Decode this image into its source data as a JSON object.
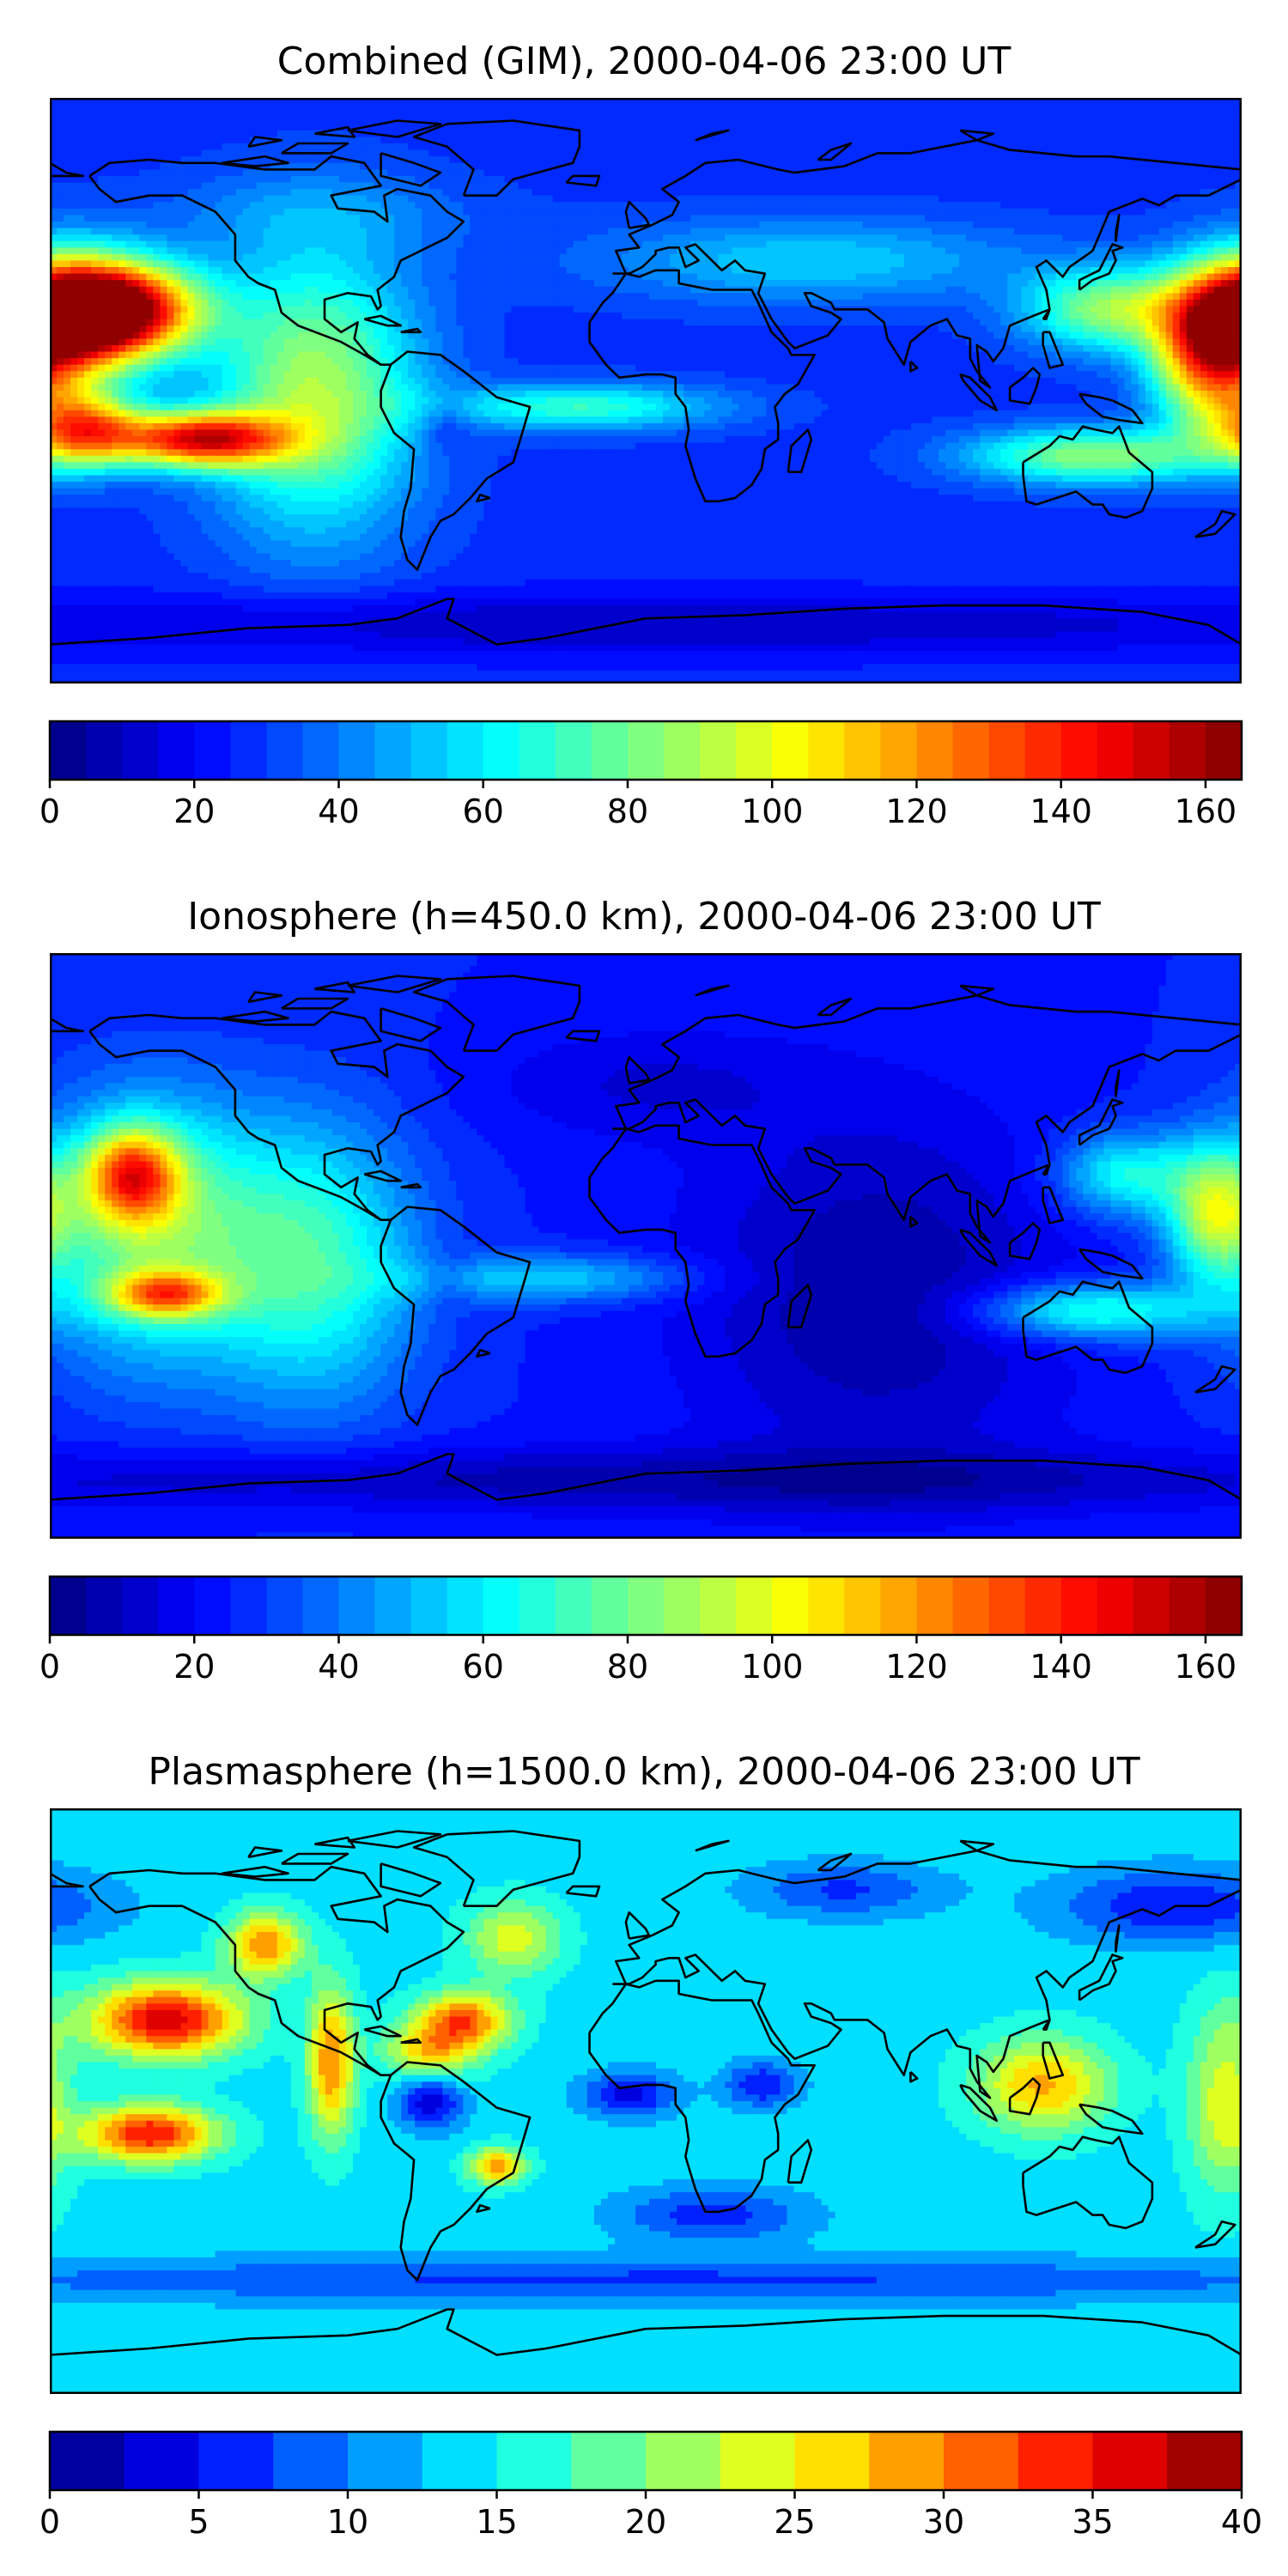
{
  "chart_data": [
    {
      "type": "heatmap",
      "title": "Combined (GIM), 2000-04-06 23:00 UT",
      "projection": "equirectangular world map with coastlines",
      "colormap": "jet",
      "colorbar": {
        "orientation": "horizontal",
        "placement": "below",
        "range": [
          0,
          165
        ],
        "levels": 33,
        "ticks": [
          0,
          20,
          40,
          60,
          80,
          100,
          120,
          140,
          160
        ]
      },
      "features": [
        {
          "lon": -160,
          "lat": 25,
          "sx": 18,
          "sy": 10,
          "value": 155
        },
        {
          "lon": -175,
          "lat": 22,
          "sx": 16,
          "sy": 14,
          "value": 120
        },
        {
          "lon": -135,
          "lat": -15,
          "sx": 18,
          "sy": 6,
          "value": 140
        },
        {
          "lon": -170,
          "lat": -12,
          "sx": 12,
          "sy": 8,
          "value": 115
        },
        {
          "lon": -100,
          "lat": 0,
          "sx": 22,
          "sy": 30,
          "value": 90
        },
        {
          "lon": -60,
          "lat": -10,
          "sx": 6,
          "sy": 6,
          "value": 15
        },
        {
          "lon": -20,
          "lat": -5,
          "sx": 30,
          "sy": 5,
          "value": 70
        },
        {
          "lon": 140,
          "lat": 25,
          "sx": 18,
          "sy": 9,
          "value": 85
        },
        {
          "lon": 170,
          "lat": 10,
          "sx": 12,
          "sy": 16,
          "value": 110
        },
        {
          "lon": 135,
          "lat": -20,
          "sx": 26,
          "sy": 6,
          "value": 85
        },
        {
          "lon": 50,
          "lat": 40,
          "sx": 45,
          "sy": 9,
          "value": 55
        },
        {
          "lon": -100,
          "lat": 55,
          "sx": 35,
          "sy": 9,
          "value": 40
        },
        {
          "lon": 0,
          "lat": -72,
          "sx": 180,
          "sy": 7,
          "value": 10
        }
      ],
      "base_value": 28
    },
    {
      "type": "heatmap",
      "title": "Ionosphere  (h=450.0 km), 2000-04-06 23:00 UT",
      "projection": "equirectangular world map with coastlines",
      "colormap": "jet",
      "colorbar": {
        "orientation": "horizontal",
        "placement": "below",
        "range": [
          0,
          165
        ],
        "levels": 33,
        "ticks": [
          0,
          20,
          40,
          60,
          80,
          100,
          120,
          140,
          160
        ]
      },
      "features": [
        {
          "lon": -155,
          "lat": 22,
          "sx": 10,
          "sy": 10,
          "value": 105
        },
        {
          "lon": -150,
          "lat": 5,
          "sx": 24,
          "sy": 28,
          "value": 80
        },
        {
          "lon": -145,
          "lat": -15,
          "sx": 12,
          "sy": 5,
          "value": 95
        },
        {
          "lon": -100,
          "lat": -5,
          "sx": 22,
          "sy": 30,
          "value": 70
        },
        {
          "lon": -60,
          "lat": -10,
          "sx": 6,
          "sy": 6,
          "value": 15
        },
        {
          "lon": -30,
          "lat": -10,
          "sx": 30,
          "sy": 5,
          "value": 55
        },
        {
          "lon": 145,
          "lat": 22,
          "sx": 14,
          "sy": 9,
          "value": 65
        },
        {
          "lon": 172,
          "lat": 10,
          "sx": 10,
          "sy": 14,
          "value": 85
        },
        {
          "lon": 135,
          "lat": -20,
          "sx": 24,
          "sy": 6,
          "value": 70
        },
        {
          "lon": 70,
          "lat": -15,
          "sx": 40,
          "sy": 40,
          "value": 5
        },
        {
          "lon": 0,
          "lat": 50,
          "sx": 35,
          "sy": 12,
          "value": 15
        },
        {
          "lon": 0,
          "lat": -72,
          "sx": 180,
          "sy": 7,
          "value": 8
        }
      ],
      "base_value": 25
    },
    {
      "type": "heatmap",
      "title": "Plasmasphere (h=1500.0 km), 2000-04-06 23:00 UT",
      "projection": "equirectangular world map with coastlines",
      "colormap": "jet",
      "colorbar": {
        "orientation": "horizontal",
        "placement": "below",
        "range": [
          0,
          40
        ],
        "levels": 16,
        "ticks": [
          0,
          5,
          10,
          15,
          20,
          25,
          30,
          35,
          40
        ]
      },
      "features": [
        {
          "lon": -145,
          "lat": 25,
          "sx": 16,
          "sy": 8,
          "value": 37
        },
        {
          "lon": -150,
          "lat": -10,
          "sx": 14,
          "sy": 6,
          "value": 35
        },
        {
          "lon": -115,
          "lat": 48,
          "sx": 8,
          "sy": 7,
          "value": 30
        },
        {
          "lon": -95,
          "lat": 12,
          "sx": 5,
          "sy": 16,
          "value": 30
        },
        {
          "lon": -55,
          "lat": 25,
          "sx": 10,
          "sy": 6,
          "value": 31
        },
        {
          "lon": -65,
          "lat": 15,
          "sx": 10,
          "sy": 6,
          "value": 26
        },
        {
          "lon": -45,
          "lat": -20,
          "sx": 6,
          "sy": 4,
          "value": 29
        },
        {
          "lon": -40,
          "lat": 50,
          "sx": 10,
          "sy": 8,
          "value": 24
        },
        {
          "lon": -65,
          "lat": 0,
          "sx": 7,
          "sy": 6,
          "value": 3
        },
        {
          "lon": -5,
          "lat": 2,
          "sx": 10,
          "sy": 5,
          "value": 4
        },
        {
          "lon": 35,
          "lat": 5,
          "sx": 8,
          "sy": 5,
          "value": 5
        },
        {
          "lon": 120,
          "lat": 5,
          "sx": 14,
          "sy": 10,
          "value": 28
        },
        {
          "lon": 160,
          "lat": 60,
          "sx": 25,
          "sy": 8,
          "value": 5
        },
        {
          "lon": 60,
          "lat": 65,
          "sx": 20,
          "sy": 6,
          "value": 7
        },
        {
          "lon": 20,
          "lat": -35,
          "sx": 20,
          "sy": 6,
          "value": 6
        },
        {
          "lon": 175,
          "lat": 0,
          "sx": 8,
          "sy": 20,
          "value": 24
        },
        {
          "lon": 0,
          "lat": -55,
          "sx": 180,
          "sy": 5,
          "value": 7
        }
      ],
      "base_value": 14
    }
  ]
}
